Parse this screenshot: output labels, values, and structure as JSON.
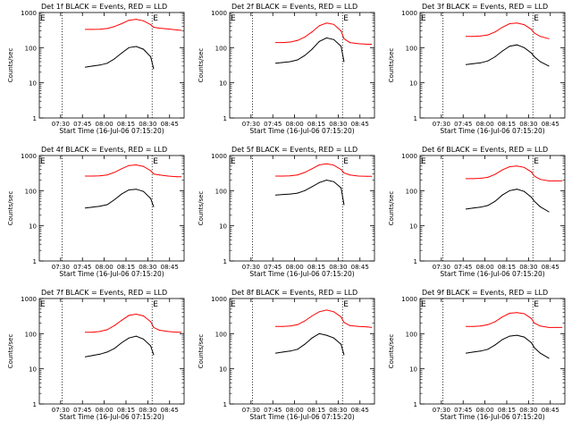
{
  "figure": {
    "start_time_label": "Start Time (16-Jul-06 07:15:20)",
    "ylabel": "Counts/sec",
    "x_ticks": [
      "07:30",
      "07:45",
      "08:00",
      "08:15",
      "08:30",
      "08:45"
    ],
    "y_ticks": [
      "1",
      "10",
      "100",
      "1000"
    ],
    "event_marker": "E",
    "colors": {
      "events": "#000000",
      "lld": "#ff0000",
      "axis": "#000000"
    }
  },
  "chart_data": [
    {
      "type": "line",
      "title": "Det 1f BLACK = Events, RED = LLD",
      "xlabel": "Start Time (16-Jul-06 07:15:20)",
      "ylabel": "Counts/sec",
      "xlim": [
        "07:15:20",
        "08:55"
      ],
      "ylim": [
        1,
        1000
      ],
      "yscale": "log",
      "x": [
        "07:47",
        "07:52",
        "07:57",
        "08:02",
        "08:07",
        "08:12",
        "08:17",
        "08:22",
        "08:27",
        "08:32",
        "08:34",
        "08:38",
        "08:44",
        "08:50",
        "08:53"
      ],
      "series": [
        {
          "name": "Events",
          "color": "#000000",
          "values": [
            28,
            30,
            32,
            36,
            48,
            70,
            100,
            108,
            90,
            55,
            25,
            null,
            null,
            null,
            null
          ]
        },
        {
          "name": "LLD",
          "color": "#ff0000",
          "values": [
            330,
            330,
            335,
            350,
            400,
            480,
            600,
            640,
            580,
            450,
            380,
            360,
            340,
            320,
            310
          ]
        }
      ],
      "vlines": [
        "07:31",
        "08:33"
      ]
    },
    {
      "type": "line",
      "title": "Det 2f BLACK = Events, RED = LLD",
      "xlabel": "Start Time (16-Jul-06 07:15:20)",
      "ylabel": "Counts/sec",
      "xlim": [
        "07:15:20",
        "08:55"
      ],
      "ylim": [
        1,
        1000
      ],
      "yscale": "log",
      "x": [
        "07:47",
        "07:52",
        "07:57",
        "08:02",
        "08:07",
        "08:12",
        "08:17",
        "08:22",
        "08:27",
        "08:32",
        "08:34",
        "08:38",
        "08:44",
        "08:50",
        "08:53"
      ],
      "series": [
        {
          "name": "Events",
          "color": "#000000",
          "values": [
            36,
            38,
            40,
            45,
            60,
            90,
            150,
            190,
            170,
            110,
            40,
            null,
            null,
            null,
            null
          ]
        },
        {
          "name": "LLD",
          "color": "#ff0000",
          "values": [
            140,
            140,
            145,
            160,
            200,
            280,
            420,
            500,
            460,
            300,
            180,
            140,
            130,
            125,
            125
          ]
        }
      ],
      "vlines": [
        "07:31",
        "08:33"
      ]
    },
    {
      "type": "line",
      "title": "Det 3f BLACK = Events, RED = LLD",
      "xlabel": "Start Time (16-Jul-06 07:15:20)",
      "ylabel": "Counts/sec",
      "xlim": [
        "07:15:20",
        "08:55"
      ],
      "ylim": [
        1,
        1000
      ],
      "yscale": "log",
      "x": [
        "07:47",
        "07:52",
        "07:57",
        "08:02",
        "08:07",
        "08:12",
        "08:17",
        "08:22",
        "08:27",
        "08:32",
        "08:34",
        "08:38",
        "08:44",
        "08:50",
        "08:53"
      ],
      "series": [
        {
          "name": "Events",
          "color": "#000000",
          "values": [
            33,
            35,
            37,
            42,
            55,
            80,
            110,
            120,
            100,
            70,
            55,
            40,
            30,
            null,
            null
          ]
        },
        {
          "name": "LLD",
          "color": "#ff0000",
          "values": [
            210,
            210,
            215,
            230,
            280,
            380,
            480,
            500,
            450,
            330,
            260,
            210,
            180,
            null,
            null
          ]
        }
      ],
      "vlines": [
        "07:31",
        "08:33"
      ]
    },
    {
      "type": "line",
      "title": "Det 4f BLACK = Events, RED = LLD",
      "xlabel": "Start Time (16-Jul-06 07:15:20)",
      "ylabel": "Counts/sec",
      "xlim": [
        "07:15:20",
        "08:55"
      ],
      "ylim": [
        1,
        1000
      ],
      "yscale": "log",
      "x": [
        "07:47",
        "07:52",
        "07:57",
        "08:02",
        "08:07",
        "08:12",
        "08:17",
        "08:22",
        "08:27",
        "08:32",
        "08:34",
        "08:38",
        "08:44",
        "08:50",
        "08:53"
      ],
      "series": [
        {
          "name": "Events",
          "color": "#000000",
          "values": [
            32,
            34,
            36,
            40,
            55,
            80,
            105,
            110,
            95,
            60,
            35,
            null,
            null,
            null,
            null
          ]
        },
        {
          "name": "LLD",
          "color": "#ff0000",
          "values": [
            260,
            260,
            265,
            280,
            330,
            420,
            520,
            540,
            490,
            370,
            300,
            280,
            260,
            250,
            250
          ]
        }
      ],
      "vlines": [
        "07:31",
        "08:33"
      ]
    },
    {
      "type": "line",
      "title": "Det 5f BLACK = Events, RED = LLD",
      "xlabel": "Start Time (16-Jul-06 07:15:20)",
      "ylabel": "Counts/sec",
      "xlim": [
        "07:15:20",
        "08:55"
      ],
      "ylim": [
        1,
        1000
      ],
      "yscale": "log",
      "x": [
        "07:47",
        "07:52",
        "07:57",
        "08:02",
        "08:07",
        "08:12",
        "08:17",
        "08:22",
        "08:27",
        "08:32",
        "08:34",
        "08:38",
        "08:44",
        "08:50",
        "08:53"
      ],
      "series": [
        {
          "name": "Events",
          "color": "#000000",
          "values": [
            75,
            78,
            80,
            85,
            100,
            130,
            170,
            200,
            180,
            120,
            40,
            null,
            null,
            null,
            null
          ]
        },
        {
          "name": "LLD",
          "color": "#ff0000",
          "values": [
            260,
            260,
            265,
            280,
            330,
            420,
            540,
            580,
            530,
            400,
            320,
            280,
            260,
            255,
            255
          ]
        }
      ],
      "vlines": [
        "07:31",
        "08:33"
      ]
    },
    {
      "type": "line",
      "title": "Det 6f BLACK = Events, RED = LLD",
      "xlabel": "Start Time (16-Jul-06 07:15:20)",
      "ylabel": "Counts/sec",
      "xlim": [
        "07:15:20",
        "08:55"
      ],
      "ylim": [
        1,
        1000
      ],
      "yscale": "log",
      "x": [
        "07:47",
        "07:52",
        "07:57",
        "08:02",
        "08:07",
        "08:12",
        "08:17",
        "08:22",
        "08:27",
        "08:32",
        "08:34",
        "08:38",
        "08:44",
        "08:50",
        "08:53"
      ],
      "series": [
        {
          "name": "Events",
          "color": "#000000",
          "values": [
            30,
            32,
            34,
            38,
            50,
            75,
            100,
            110,
            95,
            65,
            50,
            35,
            25,
            null,
            null
          ]
        },
        {
          "name": "LLD",
          "color": "#ff0000",
          "values": [
            220,
            220,
            225,
            240,
            290,
            390,
            480,
            500,
            460,
            340,
            260,
            210,
            190,
            190,
            190
          ]
        }
      ],
      "vlines": [
        "07:31",
        "08:33"
      ]
    },
    {
      "type": "line",
      "title": "Det 7f BLACK = Events, RED = LLD",
      "xlabel": "Start Time (16-Jul-06 07:15:20)",
      "ylabel": "Counts/sec",
      "xlim": [
        "07:15:20",
        "08:55"
      ],
      "ylim": [
        1,
        1000
      ],
      "yscale": "log",
      "x": [
        "07:47",
        "07:52",
        "07:57",
        "08:02",
        "08:07",
        "08:12",
        "08:17",
        "08:22",
        "08:27",
        "08:32",
        "08:34",
        "08:38",
        "08:44",
        "08:50",
        "08:53"
      ],
      "series": [
        {
          "name": "Events",
          "color": "#000000",
          "values": [
            22,
            24,
            26,
            30,
            38,
            55,
            75,
            85,
            70,
            45,
            25,
            null,
            null,
            null,
            null
          ]
        },
        {
          "name": "LLD",
          "color": "#ff0000",
          "values": [
            110,
            110,
            115,
            130,
            170,
            240,
            330,
            360,
            320,
            220,
            150,
            125,
            115,
            110,
            110
          ]
        }
      ],
      "vlines": [
        "07:31",
        "08:33"
      ]
    },
    {
      "type": "line",
      "title": "Det 8f BLACK = Events, RED = LLD",
      "xlabel": "Start Time (16-Jul-06 07:15:20)",
      "ylabel": "Counts/sec",
      "xlim": [
        "07:15:20",
        "08:55"
      ],
      "ylim": [
        1,
        1000
      ],
      "yscale": "log",
      "x": [
        "07:47",
        "07:52",
        "07:57",
        "08:02",
        "08:07",
        "08:12",
        "08:17",
        "08:22",
        "08:27",
        "08:32",
        "08:34",
        "08:38",
        "08:44",
        "08:50",
        "08:53"
      ],
      "series": [
        {
          "name": "Events",
          "color": "#000000",
          "values": [
            28,
            30,
            32,
            36,
            50,
            75,
            100,
            90,
            75,
            50,
            25,
            null,
            null,
            null,
            null
          ]
        },
        {
          "name": "LLD",
          "color": "#ff0000",
          "values": [
            160,
            160,
            165,
            180,
            230,
            320,
            420,
            470,
            420,
            300,
            210,
            170,
            160,
            155,
            150
          ]
        }
      ],
      "vlines": [
        "07:31",
        "08:33"
      ]
    },
    {
      "type": "line",
      "title": "Det 9f BLACK = Events, RED = LLD",
      "xlabel": "Start Time (16-Jul-06 07:15:20)",
      "ylabel": "Counts/sec",
      "xlim": [
        "07:15:20",
        "08:55"
      ],
      "ylim": [
        1,
        1000
      ],
      "yscale": "log",
      "x": [
        "07:47",
        "07:52",
        "07:57",
        "08:02",
        "08:07",
        "08:12",
        "08:17",
        "08:22",
        "08:27",
        "08:32",
        "08:34",
        "08:38",
        "08:44",
        "08:50",
        "08:53"
      ],
      "series": [
        {
          "name": "Events",
          "color": "#000000",
          "values": [
            28,
            30,
            32,
            36,
            48,
            68,
            85,
            90,
            80,
            55,
            40,
            28,
            20,
            null,
            null
          ]
        },
        {
          "name": "LLD",
          "color": "#ff0000",
          "values": [
            160,
            160,
            165,
            180,
            220,
            300,
            380,
            400,
            370,
            270,
            200,
            165,
            150,
            150,
            150
          ]
        }
      ],
      "vlines": [
        "07:31",
        "08:33"
      ]
    }
  ]
}
